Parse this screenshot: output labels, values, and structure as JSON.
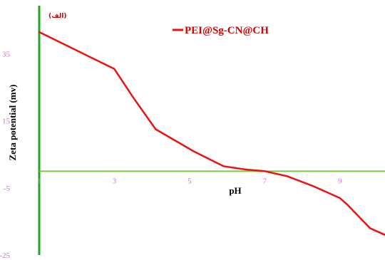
{
  "chart_data": {
    "type": "line",
    "panel_label": "(الف)",
    "xlabel": "pH",
    "ylabel": "Zeta potential (mv)",
    "xlim": [
      1,
      10.2
    ],
    "ylim": [
      -25,
      50
    ],
    "x_ticks": [
      1,
      3,
      5,
      7,
      9
    ],
    "y_ticks": [
      -25,
      -5,
      15,
      35
    ],
    "grid": false,
    "legend_position": "top-right",
    "colors": {
      "series": "#ee1111",
      "x_axis": "#7cc63a",
      "y_axis": "#1fa51f",
      "tick_label": "#e066e0"
    },
    "series": [
      {
        "name": "PEI@Sg-CN@CH",
        "x": [
          1.0,
          2.0,
          3.0,
          3.5,
          4.1,
          5.1,
          5.9,
          6.5,
          7.0,
          7.6,
          8.3,
          9.0,
          9.2,
          9.8,
          10.2
        ],
        "y": [
          41.5,
          36.0,
          30.5,
          22.0,
          12.5,
          6.0,
          1.5,
          0.5,
          0.0,
          -1.5,
          -4.5,
          -8.0,
          -10.0,
          -17.0,
          -19.0
        ]
      }
    ]
  }
}
